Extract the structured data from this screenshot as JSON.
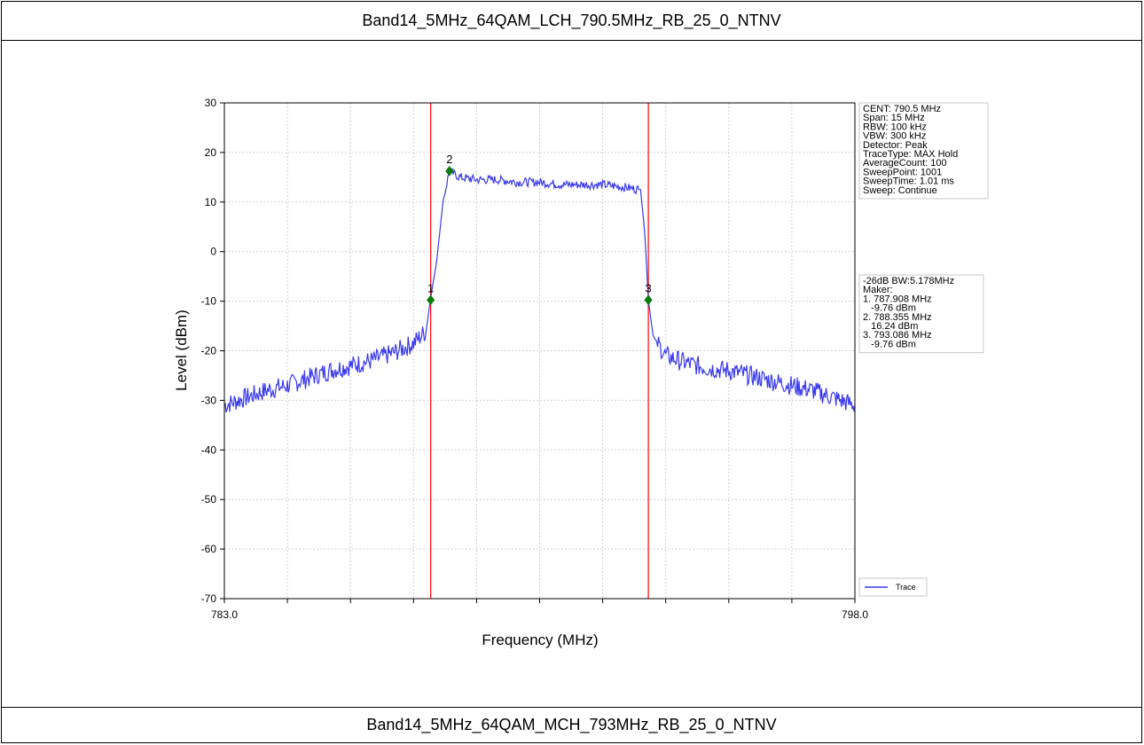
{
  "header": {
    "title": "Band14_5MHz_64QAM_LCH_790.5MHz_RB_25_0_NTNV"
  },
  "footer": {
    "title": "Band14_5MHz_64QAM_MCH_793MHz_RB_25_0_NTNV"
  },
  "chart_data": {
    "type": "line",
    "title": "",
    "xlabel": "Frequency (MHz)",
    "ylabel": "Level (dBm)",
    "xlim": [
      783.0,
      798.0
    ],
    "ylim": [
      -70,
      30
    ],
    "x_tick_labels": [
      "783.0",
      "798.0"
    ],
    "x_minor_ticks": [
      784.5,
      786.0,
      787.5,
      789.0,
      790.5,
      792.0,
      793.5,
      795.0,
      796.5
    ],
    "y_ticks": [
      30,
      20,
      10,
      0,
      -10,
      -20,
      -30,
      -40,
      -50,
      -60,
      -70
    ],
    "grid": true,
    "legend": {
      "placement": "bottom-right",
      "entries": [
        "Trace"
      ]
    },
    "colors": {
      "trace": "#3a3af0",
      "marker_line": "#ff0000",
      "marker": "#0a7d0a"
    },
    "series": [
      {
        "name": "Trace",
        "x": [
          783.0,
          783.5,
          784.0,
          784.5,
          785.0,
          785.5,
          786.0,
          786.5,
          787.0,
          787.5,
          787.8,
          787.9,
          788.05,
          788.2,
          788.35,
          788.6,
          789.0,
          789.5,
          790.0,
          790.5,
          791.0,
          791.5,
          792.0,
          792.5,
          792.9,
          793.0,
          793.086,
          793.2,
          793.5,
          794.0,
          794.5,
          795.0,
          795.5,
          796.0,
          796.5,
          797.0,
          797.5,
          798.0
        ],
        "y": [
          -31,
          -29.5,
          -28,
          -27,
          -25.5,
          -24,
          -23,
          -22,
          -20.5,
          -18.5,
          -16,
          -9.76,
          -2,
          10,
          16.24,
          15,
          14.5,
          14.5,
          14,
          14,
          13.5,
          13.5,
          13.5,
          13,
          12.5,
          4,
          -9.76,
          -17,
          -21,
          -22.5,
          -23.5,
          -24,
          -25,
          -26,
          -27,
          -28,
          -29.5,
          -31
        ]
      }
    ],
    "markers": [
      {
        "label": "1",
        "x": 787.908,
        "y": -9.76
      },
      {
        "label": "2",
        "x": 788.355,
        "y": 16.24
      },
      {
        "label": "3",
        "x": 793.086,
        "y": -9.76
      }
    ],
    "info_box_1": [
      "CENT: 790.5 MHz",
      "Span: 15 MHz",
      "RBW: 100 kHz",
      "VBW: 300 kHz",
      "Detector: Peak",
      "TraceType: MAX Hold",
      "AverageCount: 100",
      "SweepPoint: 1001",
      "SweepTime: 1.01 ms",
      "Sweep: Continue"
    ],
    "info_box_2": [
      "-26dB BW:5.178MHz",
      "Maker:",
      "1. 787.908 MHz",
      "   -9.76 dBm",
      "2. 788.355 MHz",
      "   16.24 dBm",
      "3. 793.086 MHz",
      "   -9.76 dBm"
    ]
  }
}
